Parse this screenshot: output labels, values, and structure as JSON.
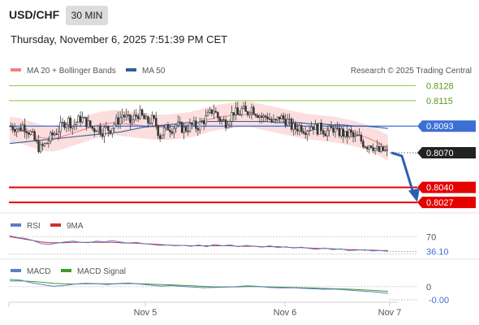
{
  "header": {
    "symbol": "USD/CHF",
    "interval": "30 MIN",
    "datetime": "Thursday, November 6, 2025 7:51:39 PM CET"
  },
  "chart_data": [
    {
      "type": "candlestick",
      "panel": "price",
      "legend": [
        {
          "name": "MA 20 + Bollinger Bands",
          "color": "#f08080"
        },
        {
          "name": "MA 50",
          "color": "#2e5f9b"
        }
      ],
      "credit": "Research © 2025 Trading Central",
      "ylim": [
        0.8018,
        0.8136
      ],
      "x_ticks": [
        "Nov 5",
        "Nov 6",
        "Nov 7"
      ],
      "price_levels": [
        {
          "label": "0.8128",
          "value": 0.8128,
          "kind": "resistance",
          "color": "#8bc34a"
        },
        {
          "label": "0.8115",
          "value": 0.8115,
          "kind": "resistance",
          "color": "#8bc34a"
        },
        {
          "label": "0.8093",
          "value": 0.8093,
          "kind": "pivot",
          "color": "#3b6fd4"
        },
        {
          "label": "0.8070",
          "value": 0.807,
          "kind": "last",
          "color": "#222222"
        },
        {
          "label": "0.8040",
          "value": 0.804,
          "kind": "support",
          "color": "#e60000"
        },
        {
          "label": "0.8027",
          "value": 0.8027,
          "kind": "support",
          "color": "#e60000"
        }
      ],
      "forecast_arrow": {
        "from": 0.807,
        "to": 0.8033,
        "color": "#2a5fb0"
      },
      "close_path": [
        0.8093,
        0.8092,
        0.809,
        0.8094,
        0.809,
        0.8086,
        0.8079,
        0.8073,
        0.8076,
        0.808,
        0.8085,
        0.8088,
        0.8092,
        0.8096,
        0.8098,
        0.8093,
        0.8097,
        0.81,
        0.8097,
        0.8094,
        0.809,
        0.8093,
        0.8088,
        0.8091,
        0.809,
        0.8095,
        0.8098,
        0.8103,
        0.81,
        0.8096,
        0.8101,
        0.8104,
        0.81,
        0.8096,
        0.8099,
        0.8096,
        0.8084,
        0.8089,
        0.8092,
        0.8091,
        0.8094,
        0.8092,
        0.809,
        0.8092,
        0.8094,
        0.8092,
        0.8096,
        0.8099,
        0.8103,
        0.8108,
        0.8101,
        0.8098,
        0.8096,
        0.8101,
        0.8106,
        0.8102,
        0.8108,
        0.8103,
        0.811,
        0.8106,
        0.8103,
        0.81,
        0.8102,
        0.8097,
        0.8096,
        0.8101,
        0.8099,
        0.8097,
        0.8092,
        0.8091,
        0.8093,
        0.809,
        0.8091,
        0.8094,
        0.809,
        0.8092,
        0.8088,
        0.8089,
        0.8091,
        0.8087,
        0.8088,
        0.8084,
        0.8088,
        0.8082,
        0.8084,
        0.8079,
        0.8076,
        0.8078,
        0.8074,
        0.8071,
        0.8072,
        0.807
      ],
      "ma50_path": [
        0.8078,
        0.8079,
        0.808,
        0.8081,
        0.8082,
        0.8083,
        0.8084,
        0.8085,
        0.8086,
        0.8087,
        0.8088,
        0.809,
        0.8092,
        0.8093,
        0.8094,
        0.8095,
        0.8096,
        0.8096,
        0.8097,
        0.8097,
        0.8097,
        0.8097,
        0.8097,
        0.8097,
        0.8096,
        0.8096,
        0.8096,
        0.8095,
        0.8095,
        0.8094,
        0.8094,
        0.8093,
        0.8093,
        0.8092,
        0.8091
      ],
      "ma20_path": [
        0.809,
        0.8089,
        0.8086,
        0.8083,
        0.8082,
        0.8084,
        0.8087,
        0.809,
        0.8093,
        0.8095,
        0.8096,
        0.8095,
        0.8094,
        0.8093,
        0.8092,
        0.8092,
        0.8093,
        0.8094,
        0.8096,
        0.8099,
        0.8101,
        0.8102,
        0.8103,
        0.8103,
        0.8101,
        0.8099,
        0.8097,
        0.8095,
        0.8093,
        0.8092,
        0.8091,
        0.809,
        0.8088,
        0.8086,
        0.8083,
        0.8079,
        0.8074
      ],
      "bb_width": 0.0011
    },
    {
      "type": "line",
      "panel": "rsi",
      "legend": [
        {
          "name": "RSI",
          "color": "#5b7fc7"
        },
        {
          "name": "9MA",
          "color": "#d32f2f"
        }
      ],
      "levels": [
        {
          "label": "70",
          "value": 70
        }
      ],
      "last_value_label": "36.10",
      "ylim": [
        20,
        80
      ],
      "rsi": [
        72,
        68,
        66,
        61,
        54,
        52,
        55,
        58,
        60,
        57,
        56,
        60,
        58,
        61,
        58,
        55,
        57,
        54,
        52,
        50,
        51,
        49,
        50,
        48,
        51,
        47,
        52,
        49,
        51,
        47,
        50,
        48,
        46,
        49,
        45,
        47,
        44,
        46,
        43,
        41,
        44,
        40,
        42,
        38,
        39,
        40,
        37,
        38,
        36.1
      ],
      "ma9": [
        70,
        67,
        64,
        61,
        58,
        56,
        56,
        56,
        57,
        57,
        57,
        57,
        57,
        57,
        56,
        55,
        55,
        54,
        53,
        52,
        51,
        50,
        50,
        49,
        49,
        49,
        49,
        49,
        49,
        48,
        48,
        48,
        47,
        47,
        47,
        46,
        45,
        45,
        44,
        43,
        43,
        42,
        41,
        40,
        40,
        39,
        39,
        38,
        38
      ]
    },
    {
      "type": "line",
      "panel": "macd",
      "legend": [
        {
          "name": "MACD",
          "color": "#5b7fc7"
        },
        {
          "name": "MACD Signal",
          "color": "#3d9a2b"
        }
      ],
      "levels": [
        {
          "label": "0",
          "value": 0
        }
      ],
      "last_value_label": "-0.00",
      "ylim": [
        -0.0006,
        0.0004
      ],
      "macd": [
        0.00028,
        0.00025,
        0.00015,
        8e-05,
        2e-05,
        4e-05,
        0.0001,
        0.00013,
        0.00012,
        8e-05,
        0.00012,
        0.00014,
        0.0001,
        6e-05,
        2e-05,
        4e-05,
        1e-05,
        -2e-05,
        -4e-05,
        -3e-05,
        -2e-05,
        0.0,
        3e-05,
        1e-05,
        -3e-05,
        -5e-05,
        -4e-05,
        -6e-05,
        -8e-05,
        -0.0001,
        -9e-05,
        -0.00012,
        -0.00015,
        -0.00018,
        -0.00021,
        -0.00026
      ],
      "signal": [
        0.00022,
        0.00022,
        0.0002,
        0.00017,
        0.00013,
        0.00011,
        0.0001,
        0.00011,
        0.00011,
        0.00011,
        0.00011,
        0.00012,
        0.00011,
        0.0001,
        8e-05,
        7e-05,
        5e-05,
        3e-05,
        1e-05,
        -1e-05,
        -1e-05,
        -1e-05,
        0.0,
        0.0,
        -1e-05,
        -2e-05,
        -3e-05,
        -4e-05,
        -5e-05,
        -7e-05,
        -8e-05,
        -9e-05,
        -0.00011,
        -0.00013,
        -0.00015,
        -0.00018
      ]
    }
  ]
}
